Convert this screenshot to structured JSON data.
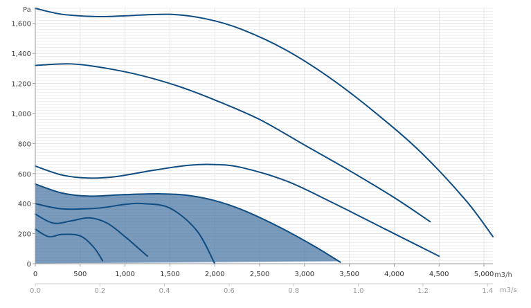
{
  "chart_data": {
    "type": "line",
    "y_unit": "Pa",
    "x_unit": "m3/h",
    "x2_unit": "m3/s",
    "xlim": [
      0,
      5100
    ],
    "ylim": [
      0,
      1700
    ],
    "x_ticks": [
      "0",
      "500",
      "1,000",
      "1,500",
      "2,000",
      "2,500",
      "3,000",
      "3,500",
      "4,000",
      "4,500",
      "5,000"
    ],
    "x_tick_values": [
      0,
      500,
      1000,
      1500,
      2000,
      2500,
      3000,
      3500,
      4000,
      4500,
      5000
    ],
    "x2_ticks": [
      "0.0",
      "0.2",
      "0.4",
      "0.6",
      "0.8",
      "1.0",
      "1.2",
      "1.4"
    ],
    "x2_tick_values": [
      0.0,
      0.2,
      0.4,
      0.6,
      0.8,
      1.0,
      1.2,
      1.4
    ],
    "y_ticks": [
      "0",
      "200",
      "400",
      "600",
      "800",
      "1,000",
      "1,200",
      "1,400",
      "1,600"
    ],
    "y_tick_values": [
      0,
      200,
      400,
      600,
      800,
      1000,
      1200,
      1400,
      1600
    ],
    "grid": true,
    "colors": {
      "curve": "#0f4c81",
      "fill": "#4f7aa6",
      "grid": "#e4e4e4",
      "axis": "#999999"
    },
    "shaded_region": {
      "x": [
        0,
        300,
        700,
        1000,
        1500,
        1900,
        2200,
        2600,
        3000,
        3400,
        3400,
        3000,
        2000,
        1000,
        0
      ],
      "y": [
        530,
        470,
        455,
        460,
        465,
        430,
        380,
        280,
        150,
        10,
        15,
        8,
        5,
        2,
        0
      ]
    },
    "series": [
      {
        "x": [
          0,
          300,
          700,
          1000,
          1500,
          1900,
          2300,
          2800,
          3300,
          3800,
          4300,
          4800,
          5100
        ],
        "y": [
          1700,
          1660,
          1645,
          1650,
          1660,
          1630,
          1560,
          1420,
          1230,
          1000,
          740,
          420,
          180
        ]
      },
      {
        "x": [
          0,
          400,
          800,
          1200,
          1600,
          2000,
          2500,
          3000,
          3500,
          4000,
          4400
        ],
        "y": [
          1320,
          1330,
          1300,
          1250,
          1180,
          1090,
          960,
          790,
          620,
          440,
          280
        ]
      },
      {
        "x": [
          0,
          300,
          600,
          900,
          1300,
          1700,
          2000,
          2300,
          2800,
          3300,
          3900,
          4500
        ],
        "y": [
          650,
          590,
          570,
          580,
          620,
          655,
          660,
          640,
          550,
          410,
          230,
          50
        ]
      },
      {
        "x": [
          0,
          300,
          600,
          1000,
          1400,
          1700,
          2000,
          2300,
          2700,
          3100,
          3400
        ],
        "y": [
          530,
          470,
          450,
          460,
          465,
          455,
          420,
          360,
          250,
          120,
          10
        ]
      },
      {
        "x": [
          0,
          300,
          700,
          1000,
          1200,
          1500,
          1800,
          2000
        ],
        "y": [
          400,
          365,
          370,
          395,
          400,
          370,
          220,
          0
        ]
      },
      {
        "x": [
          0,
          200,
          400,
          600,
          800,
          1000,
          1250
        ],
        "y": [
          330,
          270,
          285,
          305,
          270,
          180,
          50
        ]
      },
      {
        "x": [
          0,
          150,
          300,
          500,
          650,
          750
        ],
        "y": [
          230,
          180,
          195,
          185,
          110,
          20
        ]
      }
    ]
  }
}
